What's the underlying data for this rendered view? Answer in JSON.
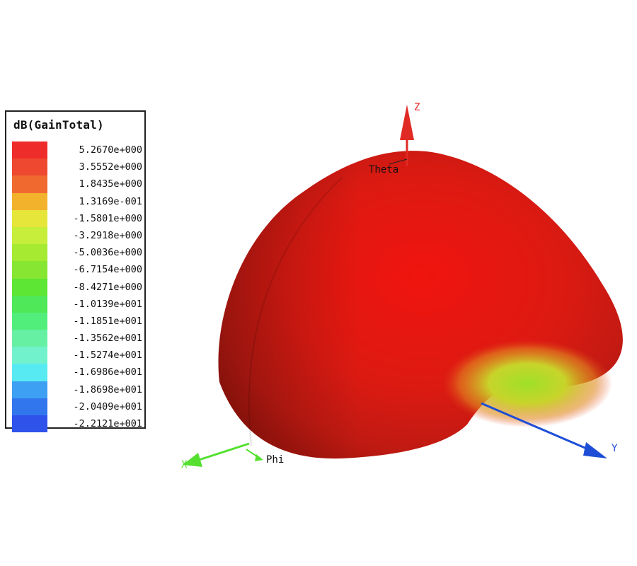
{
  "chart_data": {
    "type": "heatmap",
    "legend": {
      "title": "dB(GainTotal)",
      "entries": [
        {
          "label": "5.2670e+000",
          "value": 5.267,
          "color": "#ee2c2a"
        },
        {
          "label": "3.5552e+000",
          "value": 3.5552,
          "color": "#ee4830"
        },
        {
          "label": "1.8435e+000",
          "value": 1.8435,
          "color": "#f06a30"
        },
        {
          "label": "1.3169e-001",
          "value": 0.13169,
          "color": "#f2b22c"
        },
        {
          "label": "-1.5801e+000",
          "value": -1.5801,
          "color": "#e6e63a"
        },
        {
          "label": "-3.2918e+000",
          "value": -3.2918,
          "color": "#c6ee3a"
        },
        {
          "label": "-5.0036e+000",
          "value": -5.0036,
          "color": "#a6ea32"
        },
        {
          "label": "-6.7154e+000",
          "value": -6.7154,
          "color": "#86e632"
        },
        {
          "label": "-8.4271e+000",
          "value": -8.4271,
          "color": "#5ee634"
        },
        {
          "label": "-1.0139e+001",
          "value": -10.139,
          "color": "#4ee858"
        },
        {
          "label": "-1.1851e+001",
          "value": -11.851,
          "color": "#52ee7c"
        },
        {
          "label": "-1.3562e+001",
          "value": -13.562,
          "color": "#66f0a4"
        },
        {
          "label": "-1.5274e+001",
          "value": -15.274,
          "color": "#72f2cc"
        },
        {
          "label": "-1.6986e+001",
          "value": -16.986,
          "color": "#58eaf2"
        },
        {
          "label": "-1.8698e+001",
          "value": -18.698,
          "color": "#3ea0f2"
        },
        {
          "label": "-2.0409e+001",
          "value": -20.409,
          "color": "#3276ee"
        },
        {
          "label": "-2.2121e+001",
          "value": -22.121,
          "color": "#2e52ea"
        }
      ]
    },
    "axes": {
      "x": {
        "label": "X",
        "color": "#55e030"
      },
      "y": {
        "label": "Y",
        "color": "#1e4ed6"
      },
      "z": {
        "label": "Z",
        "color": "#e02a24"
      }
    },
    "angle_labels": {
      "theta": "Theta",
      "phi": "Phi"
    },
    "surface": {
      "shape": "hemisphere",
      "dominant_color": "#e61c10",
      "null_color": "#a8e030"
    }
  }
}
